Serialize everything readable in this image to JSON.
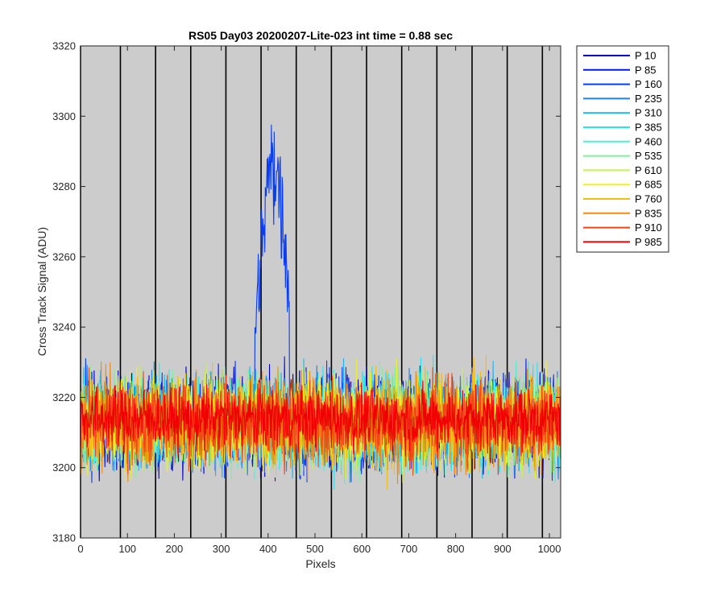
{
  "chart_data": {
    "type": "line",
    "title": "RS05 Day03 20200207-Lite-023 int time = 0.88 sec",
    "xlabel": "Pixels",
    "ylabel": "Cross Track Signal (ADU)",
    "xlim": [
      0,
      1024
    ],
    "ylim": [
      3180,
      3320
    ],
    "x_ticks": [
      0,
      100,
      200,
      300,
      400,
      500,
      600,
      700,
      800,
      900,
      1000
    ],
    "y_ticks": [
      3180,
      3200,
      3220,
      3240,
      3260,
      3280,
      3300,
      3320
    ],
    "vertical_grid_x": [
      0,
      85,
      160,
      235,
      310,
      385,
      460,
      535,
      610,
      685,
      760,
      835,
      910,
      985
    ],
    "background_color": "#cccccc",
    "legend_position": "outside-right",
    "series": [
      {
        "name": "P 10",
        "color": "#0000cd",
        "baseline": 3213,
        "noise": 9
      },
      {
        "name": "P 85",
        "color": "#0019e6",
        "baseline": 3213,
        "noise": 9
      },
      {
        "name": "P 160",
        "color": "#0a3cf0",
        "baseline": 3213,
        "noise": 9,
        "peak": {
          "center": 412,
          "width": 28,
          "height": 80,
          "start": 372,
          "end": 445
        }
      },
      {
        "name": "P 235",
        "color": "#1e82f0",
        "baseline": 3213,
        "noise": 9
      },
      {
        "name": "P 310",
        "color": "#1eb4f0",
        "baseline": 3213,
        "noise": 9
      },
      {
        "name": "P 385",
        "color": "#28e6f0",
        "baseline": 3213,
        "noise": 9
      },
      {
        "name": "P 460",
        "color": "#50f0d2",
        "baseline": 3213,
        "noise": 9
      },
      {
        "name": "P 535",
        "color": "#82f09b",
        "baseline": 3213,
        "noise": 9
      },
      {
        "name": "P 610",
        "color": "#c8f050",
        "baseline": 3213,
        "noise": 9
      },
      {
        "name": "P 685",
        "color": "#f0f01e",
        "baseline": 3213,
        "noise": 9
      },
      {
        "name": "P 760",
        "color": "#f0be14",
        "baseline": 3213,
        "noise": 9
      },
      {
        "name": "P 835",
        "color": "#f08c14",
        "baseline": 3213,
        "noise": 9
      },
      {
        "name": "P 910",
        "color": "#f04614",
        "baseline": 3213,
        "noise": 8
      },
      {
        "name": "P 985",
        "color": "#f00000",
        "baseline": 3214,
        "noise": 6
      }
    ]
  }
}
